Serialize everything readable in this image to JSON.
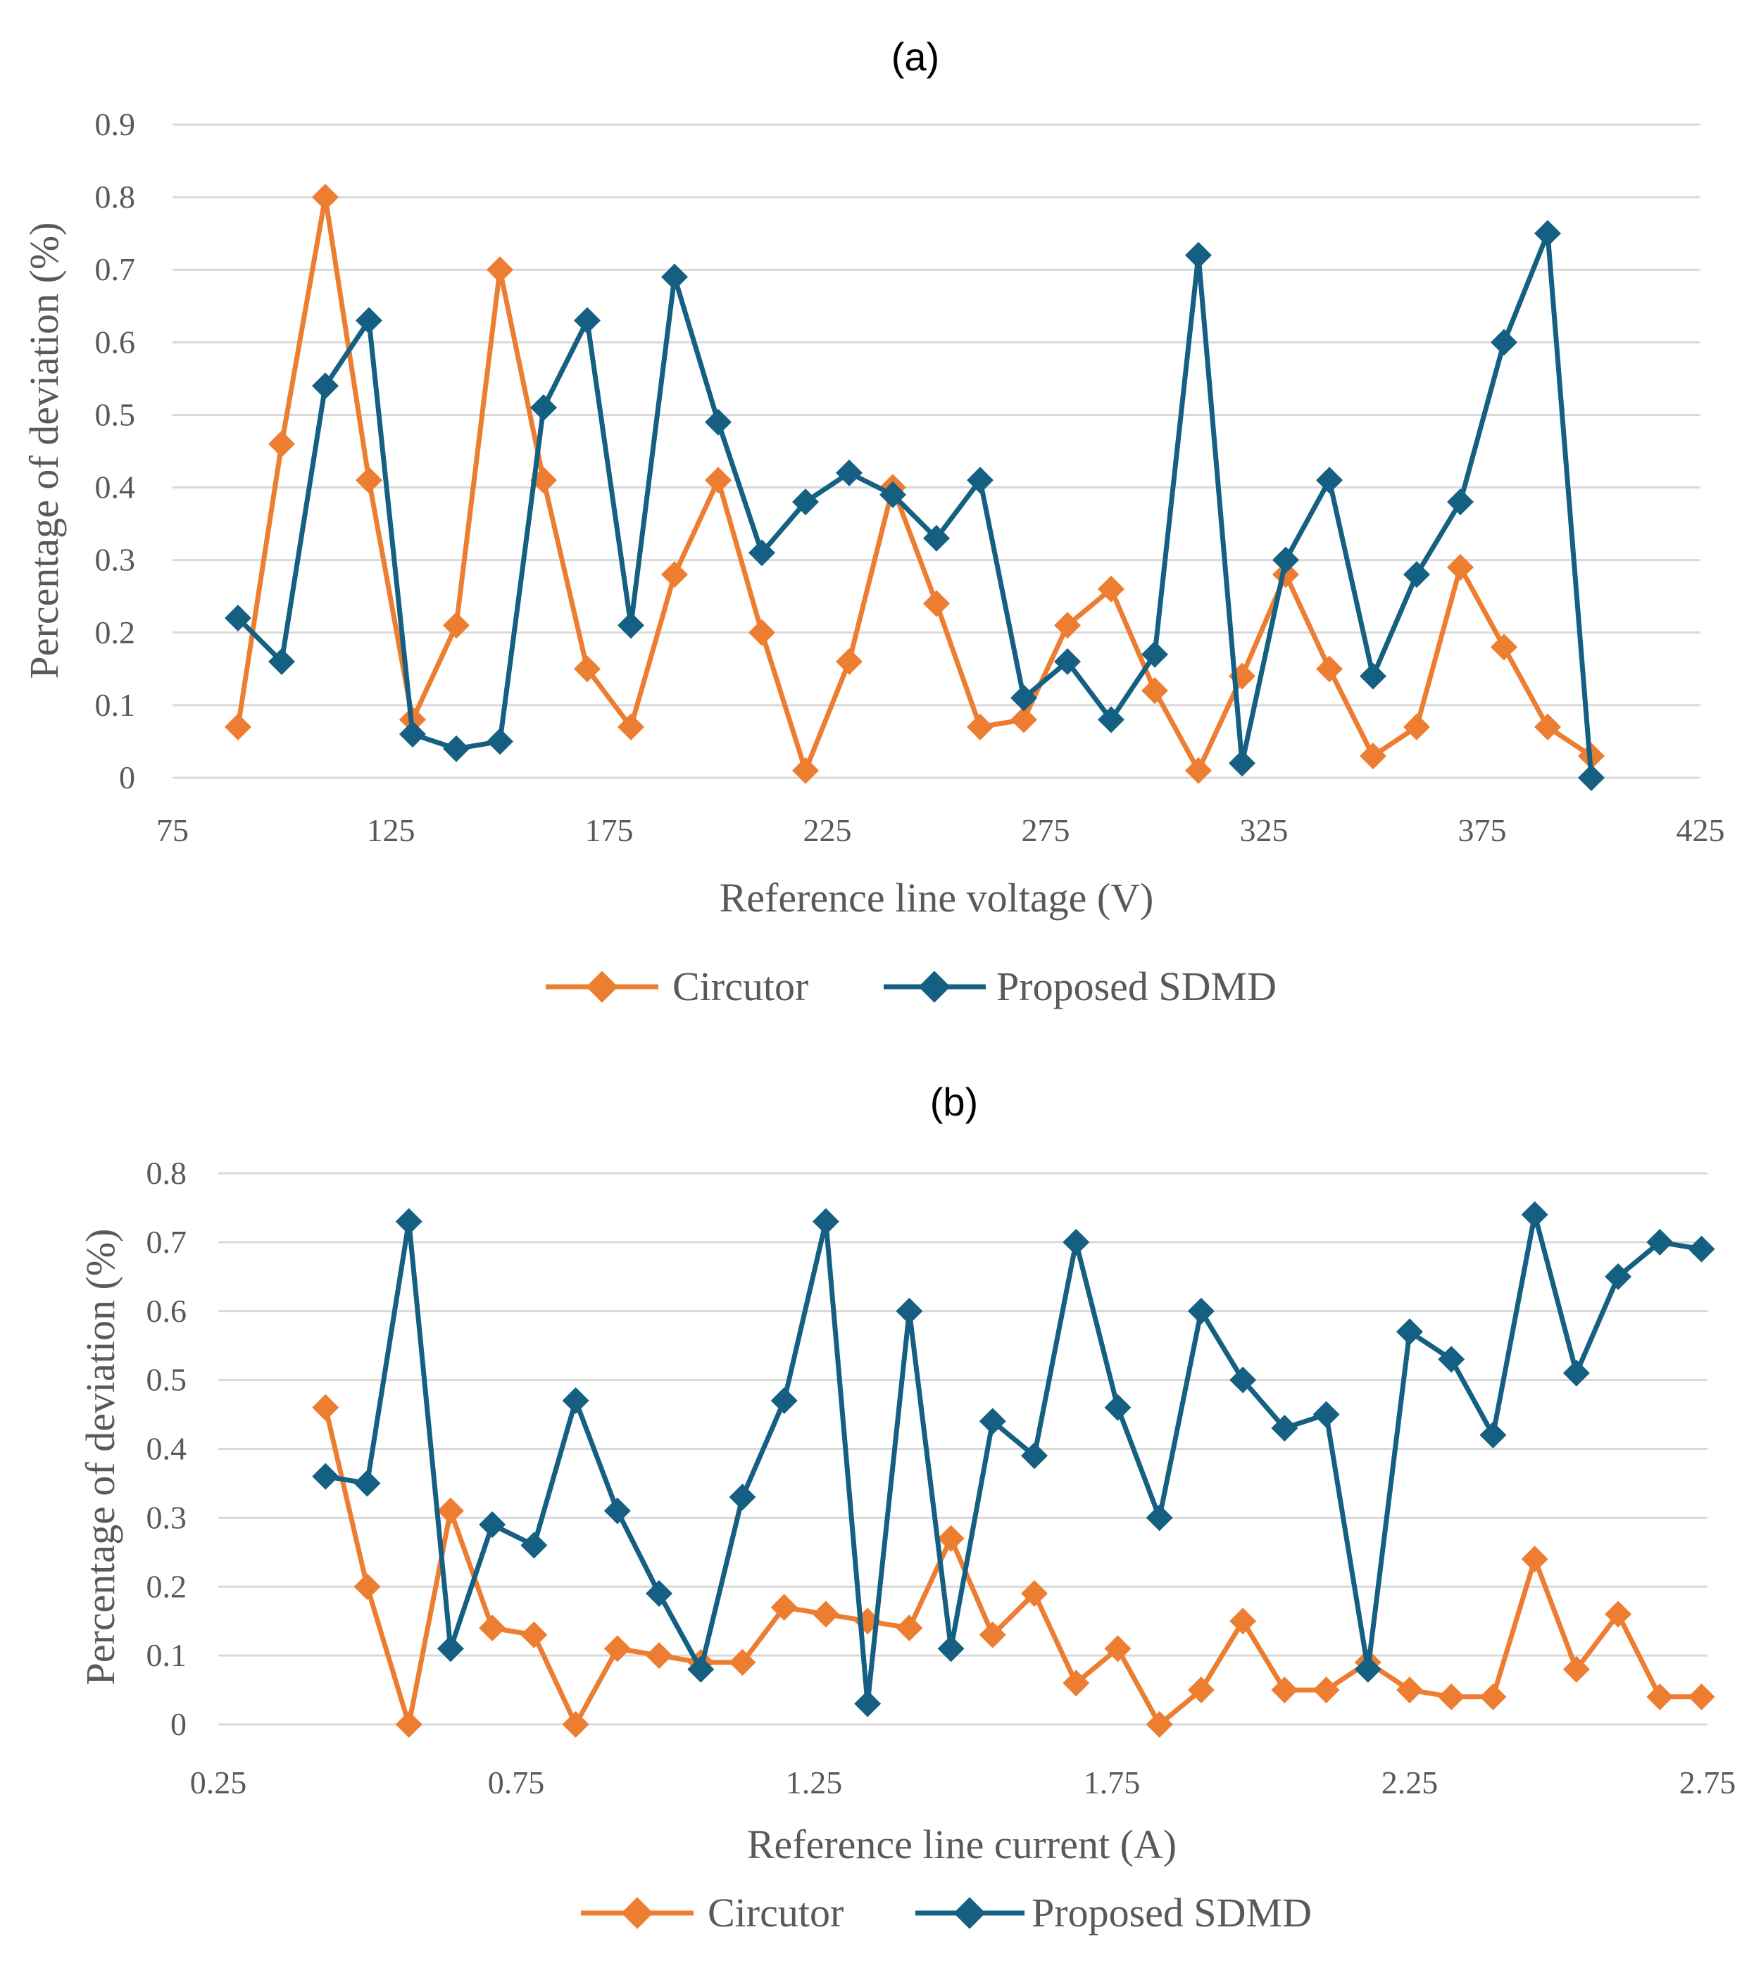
{
  "chart_data": [
    {
      "type": "line",
      "title": "(a)",
      "xlabel": "Reference line voltage (V)",
      "ylabel": "Percentage of deviation (%)",
      "xlim": [
        75,
        425
      ],
      "ylim": [
        0,
        0.9
      ],
      "xticks": [
        "75",
        "125",
        "175",
        "225",
        "275",
        "325",
        "375",
        "425"
      ],
      "yticks": [
        "0",
        "0.1",
        "0.2",
        "0.3",
        "0.4",
        "0.5",
        "0.6",
        "0.7",
        "0.8",
        "0.9"
      ],
      "grid": true,
      "legend": "bottom",
      "x": [
        90,
        100,
        110,
        120,
        130,
        140,
        150,
        160,
        170,
        180,
        190,
        200,
        210,
        220,
        230,
        240,
        250,
        260,
        270,
        280,
        290,
        300,
        310,
        320,
        330,
        340,
        350,
        360,
        370,
        380,
        390,
        400
      ],
      "series": [
        {
          "name": "Circutor",
          "color": "#ed7d31",
          "values": [
            0.07,
            0.46,
            0.8,
            0.41,
            0.08,
            0.21,
            0.7,
            0.41,
            0.15,
            0.07,
            0.28,
            0.41,
            0.2,
            0.01,
            0.16,
            0.4,
            0.24,
            0.07,
            0.08,
            0.21,
            0.26,
            0.12,
            0.01,
            0.14,
            0.28,
            0.15,
            0.03,
            0.07,
            0.29,
            0.18,
            0.07,
            0.03
          ]
        },
        {
          "name": "Proposed SDMD",
          "color": "#156082",
          "values": [
            0.22,
            0.16,
            0.54,
            0.63,
            0.06,
            0.04,
            0.05,
            0.51,
            0.63,
            0.21,
            0.69,
            0.49,
            0.31,
            0.38,
            0.42,
            0.39,
            0.33,
            0.41,
            0.11,
            0.16,
            0.08,
            0.17,
            0.72,
            0.02,
            0.3,
            0.41,
            0.14,
            0.28,
            0.38,
            0.6,
            0.75,
            0.0
          ]
        }
      ]
    },
    {
      "type": "line",
      "title": "(b)",
      "xlabel": "Reference line current (A)",
      "ylabel": "Percentage of deviation (%)",
      "xlim": [
        0.25,
        2.75
      ],
      "ylim": [
        0,
        0.8
      ],
      "xticks": [
        "0.25",
        "0.75",
        "1.25",
        "1.75",
        "2.25",
        "2.75"
      ],
      "yticks": [
        "0",
        "0.1",
        "0.2",
        "0.3",
        "0.4",
        "0.5",
        "0.6",
        "0.7",
        "0.8"
      ],
      "grid": true,
      "legend": "bottom",
      "x": [
        0.43,
        0.5,
        0.57,
        0.64,
        0.71,
        0.78,
        0.85,
        0.92,
        0.99,
        1.06,
        1.13,
        1.2,
        1.27,
        1.34,
        1.41,
        1.48,
        1.55,
        1.62,
        1.69,
        1.76,
        1.83,
        1.9,
        1.97,
        2.04,
        2.11,
        2.18,
        2.25,
        2.32,
        2.39,
        2.46,
        2.53,
        2.6,
        2.67,
        2.74
      ],
      "series": [
        {
          "name": "Circutor",
          "color": "#ed7d31",
          "values": [
            0.46,
            0.2,
            0.0,
            0.31,
            0.14,
            0.13,
            0.0,
            0.11,
            0.1,
            0.09,
            0.09,
            0.17,
            0.16,
            0.15,
            0.14,
            0.27,
            0.13,
            0.19,
            0.06,
            0.11,
            0.0,
            0.05,
            0.15,
            0.05,
            0.05,
            0.09,
            0.05,
            0.04,
            0.04,
            0.24,
            0.08,
            0.16,
            0.04,
            0.04
          ]
        },
        {
          "name": "Proposed SDMD",
          "color": "#156082",
          "values": [
            0.36,
            0.35,
            0.73,
            0.11,
            0.29,
            0.26,
            0.47,
            0.31,
            0.19,
            0.08,
            0.33,
            0.47,
            0.73,
            0.03,
            0.6,
            0.11,
            0.44,
            0.39,
            0.7,
            0.46,
            0.3,
            0.6,
            0.5,
            0.43,
            0.45,
            0.08,
            0.57,
            0.53,
            0.42,
            0.74,
            0.51,
            0.65,
            0.7,
            0.69
          ]
        }
      ]
    }
  ]
}
